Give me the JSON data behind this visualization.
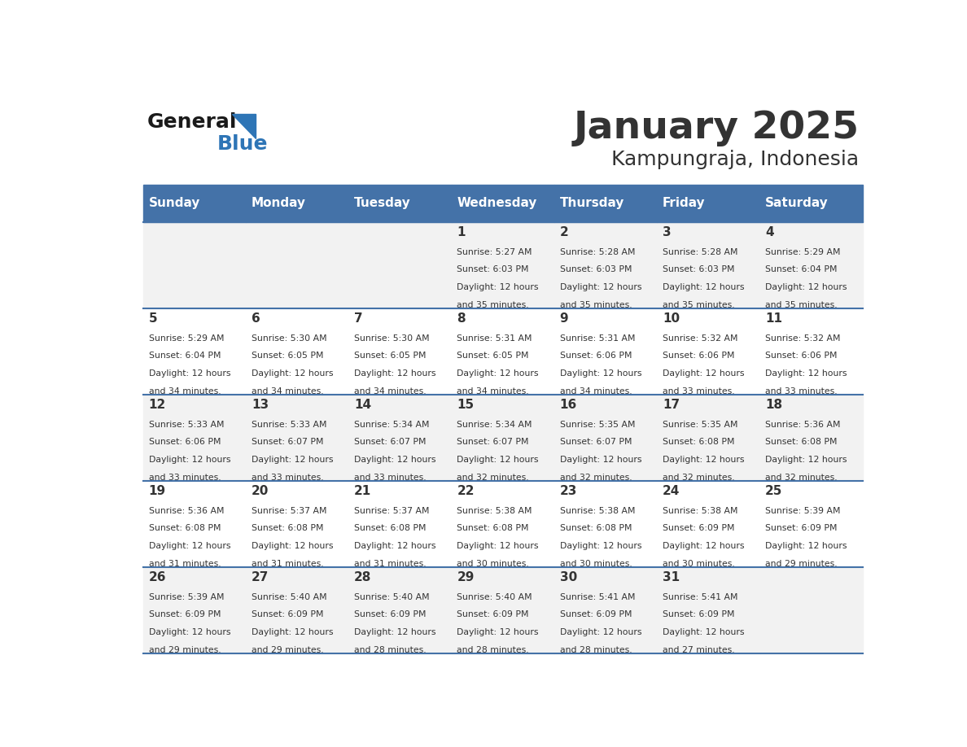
{
  "title": "January 2025",
  "subtitle": "Kampungraja, Indonesia",
  "header_bg": "#4472A8",
  "header_text_color": "#FFFFFF",
  "days_of_week": [
    "Sunday",
    "Monday",
    "Tuesday",
    "Wednesday",
    "Thursday",
    "Friday",
    "Saturday"
  ],
  "row_bg_odd": "#FFFFFF",
  "row_bg_even": "#F2F2F2",
  "divider_color": "#4472A8",
  "text_color": "#333333",
  "logo_general_color": "#1a1a1a",
  "logo_blue_color": "#2E75B6",
  "calendar_data": [
    [
      {
        "day": "",
        "sunrise": "",
        "sunset": "",
        "daylight": ""
      },
      {
        "day": "",
        "sunrise": "",
        "sunset": "",
        "daylight": ""
      },
      {
        "day": "",
        "sunrise": "",
        "sunset": "",
        "daylight": ""
      },
      {
        "day": "1",
        "sunrise": "5:27 AM",
        "sunset": "6:03 PM",
        "daylight": "12 hours and 35 minutes."
      },
      {
        "day": "2",
        "sunrise": "5:28 AM",
        "sunset": "6:03 PM",
        "daylight": "12 hours and 35 minutes."
      },
      {
        "day": "3",
        "sunrise": "5:28 AM",
        "sunset": "6:03 PM",
        "daylight": "12 hours and 35 minutes."
      },
      {
        "day": "4",
        "sunrise": "5:29 AM",
        "sunset": "6:04 PM",
        "daylight": "12 hours and 35 minutes."
      }
    ],
    [
      {
        "day": "5",
        "sunrise": "5:29 AM",
        "sunset": "6:04 PM",
        "daylight": "12 hours and 34 minutes."
      },
      {
        "day": "6",
        "sunrise": "5:30 AM",
        "sunset": "6:05 PM",
        "daylight": "12 hours and 34 minutes."
      },
      {
        "day": "7",
        "sunrise": "5:30 AM",
        "sunset": "6:05 PM",
        "daylight": "12 hours and 34 minutes."
      },
      {
        "day": "8",
        "sunrise": "5:31 AM",
        "sunset": "6:05 PM",
        "daylight": "12 hours and 34 minutes."
      },
      {
        "day": "9",
        "sunrise": "5:31 AM",
        "sunset": "6:06 PM",
        "daylight": "12 hours and 34 minutes."
      },
      {
        "day": "10",
        "sunrise": "5:32 AM",
        "sunset": "6:06 PM",
        "daylight": "12 hours and 33 minutes."
      },
      {
        "day": "11",
        "sunrise": "5:32 AM",
        "sunset": "6:06 PM",
        "daylight": "12 hours and 33 minutes."
      }
    ],
    [
      {
        "day": "12",
        "sunrise": "5:33 AM",
        "sunset": "6:06 PM",
        "daylight": "12 hours and 33 minutes."
      },
      {
        "day": "13",
        "sunrise": "5:33 AM",
        "sunset": "6:07 PM",
        "daylight": "12 hours and 33 minutes."
      },
      {
        "day": "14",
        "sunrise": "5:34 AM",
        "sunset": "6:07 PM",
        "daylight": "12 hours and 33 minutes."
      },
      {
        "day": "15",
        "sunrise": "5:34 AM",
        "sunset": "6:07 PM",
        "daylight": "12 hours and 32 minutes."
      },
      {
        "day": "16",
        "sunrise": "5:35 AM",
        "sunset": "6:07 PM",
        "daylight": "12 hours and 32 minutes."
      },
      {
        "day": "17",
        "sunrise": "5:35 AM",
        "sunset": "6:08 PM",
        "daylight": "12 hours and 32 minutes."
      },
      {
        "day": "18",
        "sunrise": "5:36 AM",
        "sunset": "6:08 PM",
        "daylight": "12 hours and 32 minutes."
      }
    ],
    [
      {
        "day": "19",
        "sunrise": "5:36 AM",
        "sunset": "6:08 PM",
        "daylight": "12 hours and 31 minutes."
      },
      {
        "day": "20",
        "sunrise": "5:37 AM",
        "sunset": "6:08 PM",
        "daylight": "12 hours and 31 minutes."
      },
      {
        "day": "21",
        "sunrise": "5:37 AM",
        "sunset": "6:08 PM",
        "daylight": "12 hours and 31 minutes."
      },
      {
        "day": "22",
        "sunrise": "5:38 AM",
        "sunset": "6:08 PM",
        "daylight": "12 hours and 30 minutes."
      },
      {
        "day": "23",
        "sunrise": "5:38 AM",
        "sunset": "6:08 PM",
        "daylight": "12 hours and 30 minutes."
      },
      {
        "day": "24",
        "sunrise": "5:38 AM",
        "sunset": "6:09 PM",
        "daylight": "12 hours and 30 minutes."
      },
      {
        "day": "25",
        "sunrise": "5:39 AM",
        "sunset": "6:09 PM",
        "daylight": "12 hours and 29 minutes."
      }
    ],
    [
      {
        "day": "26",
        "sunrise": "5:39 AM",
        "sunset": "6:09 PM",
        "daylight": "12 hours and 29 minutes."
      },
      {
        "day": "27",
        "sunrise": "5:40 AM",
        "sunset": "6:09 PM",
        "daylight": "12 hours and 29 minutes."
      },
      {
        "day": "28",
        "sunrise": "5:40 AM",
        "sunset": "6:09 PM",
        "daylight": "12 hours and 28 minutes."
      },
      {
        "day": "29",
        "sunrise": "5:40 AM",
        "sunset": "6:09 PM",
        "daylight": "12 hours and 28 minutes."
      },
      {
        "day": "30",
        "sunrise": "5:41 AM",
        "sunset": "6:09 PM",
        "daylight": "12 hours and 28 minutes."
      },
      {
        "day": "31",
        "sunrise": "5:41 AM",
        "sunset": "6:09 PM",
        "daylight": "12 hours and 27 minutes."
      },
      {
        "day": "",
        "sunrise": "",
        "sunset": "",
        "daylight": ""
      }
    ]
  ]
}
